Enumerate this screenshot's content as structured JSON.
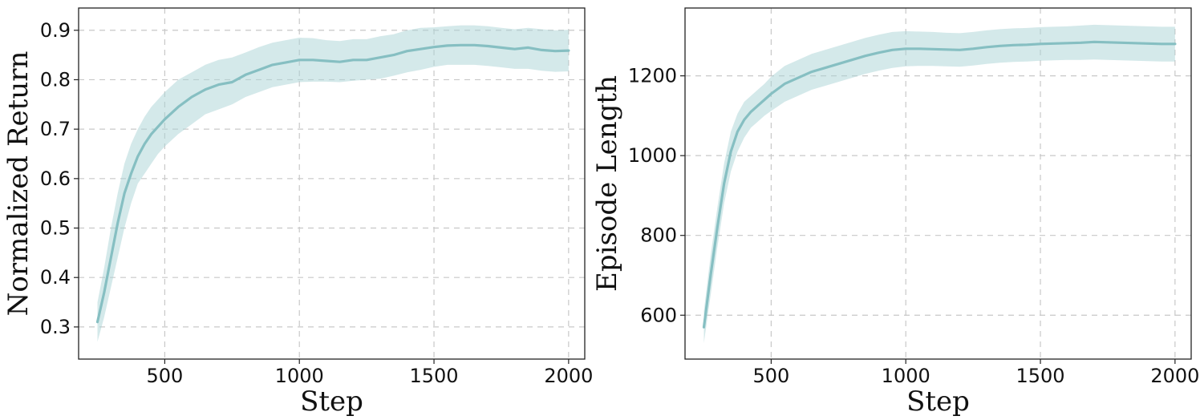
{
  "chart_data": [
    {
      "type": "line",
      "xlabel": "Step",
      "ylabel": "Normalized Return",
      "xlim": [
        180,
        2060
      ],
      "ylim": [
        0.235,
        0.945
      ],
      "xticks": [
        500,
        1000,
        1500,
        2000
      ],
      "yticks": [
        0.3,
        0.4,
        0.5,
        0.6,
        0.7,
        0.8,
        0.9
      ],
      "grid": true,
      "color": "#86bfc2",
      "band_color": "#a9d3d6",
      "series": [
        {
          "x": [
            250,
            275,
            300,
            325,
            350,
            375,
            400,
            425,
            450,
            475,
            500,
            550,
            600,
            650,
            700,
            750,
            800,
            850,
            900,
            950,
            1000,
            1050,
            1100,
            1150,
            1200,
            1250,
            1300,
            1350,
            1400,
            1450,
            1500,
            1550,
            1600,
            1650,
            1700,
            1750,
            1800,
            1850,
            1900,
            1950,
            2000
          ],
          "y": [
            0.31,
            0.37,
            0.44,
            0.51,
            0.57,
            0.61,
            0.645,
            0.67,
            0.69,
            0.705,
            0.72,
            0.745,
            0.765,
            0.78,
            0.79,
            0.795,
            0.81,
            0.82,
            0.83,
            0.835,
            0.84,
            0.84,
            0.838,
            0.836,
            0.84,
            0.84,
            0.845,
            0.85,
            0.858,
            0.862,
            0.866,
            0.869,
            0.87,
            0.87,
            0.868,
            0.865,
            0.862,
            0.865,
            0.86,
            0.858,
            0.859
          ],
          "lower": [
            0.27,
            0.32,
            0.38,
            0.44,
            0.5,
            0.55,
            0.59,
            0.61,
            0.63,
            0.65,
            0.665,
            0.69,
            0.71,
            0.73,
            0.74,
            0.75,
            0.765,
            0.775,
            0.785,
            0.79,
            0.795,
            0.796,
            0.796,
            0.795,
            0.798,
            0.8,
            0.802,
            0.808,
            0.815,
            0.82,
            0.826,
            0.83,
            0.83,
            0.83,
            0.828,
            0.825,
            0.822,
            0.822,
            0.818,
            0.816,
            0.817
          ],
          "upper": [
            0.35,
            0.42,
            0.5,
            0.57,
            0.63,
            0.67,
            0.7,
            0.725,
            0.745,
            0.76,
            0.775,
            0.8,
            0.815,
            0.83,
            0.84,
            0.845,
            0.855,
            0.866,
            0.875,
            0.88,
            0.885,
            0.884,
            0.88,
            0.878,
            0.882,
            0.882,
            0.888,
            0.892,
            0.9,
            0.905,
            0.906,
            0.908,
            0.91,
            0.91,
            0.908,
            0.905,
            0.902,
            0.905,
            0.902,
            0.9,
            0.901
          ]
        }
      ]
    },
    {
      "type": "line",
      "xlabel": "Step",
      "ylabel": "Episode Length",
      "xlim": [
        180,
        2060
      ],
      "ylim": [
        490,
        1370
      ],
      "xticks": [
        500,
        1000,
        1500,
        2000
      ],
      "yticks": [
        600,
        800,
        1000,
        1200
      ],
      "grid": true,
      "color": "#86bfc2",
      "band_color": "#a9d3d6",
      "series": [
        {
          "x": [
            250,
            275,
            300,
            325,
            350,
            375,
            400,
            425,
            450,
            475,
            500,
            550,
            600,
            650,
            700,
            750,
            800,
            850,
            900,
            950,
            1000,
            1050,
            1100,
            1150,
            1200,
            1250,
            1300,
            1350,
            1400,
            1450,
            1500,
            1550,
            1600,
            1650,
            1700,
            1750,
            1800,
            1850,
            1900,
            1950,
            2000
          ],
          "y": [
            570,
            700,
            820,
            930,
            1010,
            1060,
            1090,
            1110,
            1125,
            1140,
            1155,
            1180,
            1195,
            1210,
            1220,
            1230,
            1240,
            1250,
            1258,
            1265,
            1268,
            1268,
            1267,
            1266,
            1265,
            1268,
            1272,
            1275,
            1277,
            1278,
            1280,
            1281,
            1282,
            1283,
            1285,
            1284,
            1283,
            1282,
            1281,
            1280,
            1280
          ],
          "lower": [
            530,
            650,
            770,
            880,
            960,
            1010,
            1045,
            1070,
            1085,
            1100,
            1112,
            1135,
            1150,
            1165,
            1175,
            1185,
            1195,
            1205,
            1213,
            1220,
            1224,
            1225,
            1225,
            1224,
            1223,
            1226,
            1230,
            1233,
            1235,
            1236,
            1238,
            1239,
            1240,
            1240,
            1241,
            1240,
            1239,
            1238,
            1237,
            1236,
            1236
          ],
          "upper": [
            610,
            750,
            870,
            980,
            1060,
            1105,
            1135,
            1150,
            1165,
            1180,
            1198,
            1225,
            1240,
            1255,
            1265,
            1275,
            1285,
            1295,
            1303,
            1310,
            1312,
            1311,
            1310,
            1308,
            1307,
            1310,
            1314,
            1317,
            1319,
            1320,
            1322,
            1323,
            1324,
            1326,
            1328,
            1327,
            1326,
            1325,
            1324,
            1323,
            1323
          ]
        }
      ]
    }
  ]
}
